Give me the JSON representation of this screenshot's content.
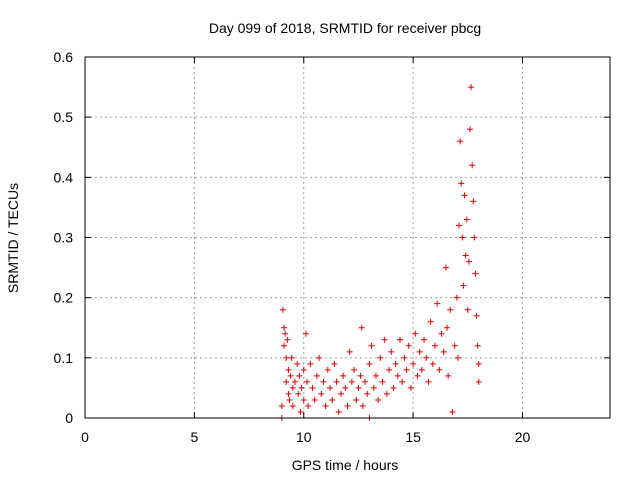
{
  "chart_data": {
    "type": "scatter",
    "title": "Day 099 of 2018, SRMTID for receiver pbcg",
    "xlabel": "GPS time / hours",
    "ylabel": "SRMTID / TECUs",
    "xlim": [
      0,
      24
    ],
    "ylim": [
      0,
      0.6
    ],
    "xticks": [
      0,
      5,
      10,
      15,
      20
    ],
    "yticks": [
      0,
      0.1,
      0.2,
      0.3,
      0.4,
      0.5,
      0.6
    ],
    "grid": true,
    "marker": "+",
    "color": "#e00000",
    "series": [
      {
        "points": [
          [
            9.0,
            0.0
          ],
          [
            9.0,
            0.02
          ],
          [
            9.05,
            0.18
          ],
          [
            9.1,
            0.15
          ],
          [
            9.1,
            0.12
          ],
          [
            9.15,
            0.14
          ],
          [
            9.2,
            0.1
          ],
          [
            9.2,
            0.06
          ],
          [
            9.25,
            0.13
          ],
          [
            9.3,
            0.08
          ],
          [
            9.3,
            0.04
          ],
          [
            9.35,
            0.03
          ],
          [
            9.4,
            0.07
          ],
          [
            9.45,
            0.1
          ],
          [
            9.5,
            0.05
          ],
          [
            9.5,
            0.02
          ],
          [
            9.6,
            0.06
          ],
          [
            9.7,
            0.09
          ],
          [
            9.75,
            0.04
          ],
          [
            9.8,
            0.07
          ],
          [
            9.85,
            0.01
          ],
          [
            9.9,
            0.05
          ],
          [
            10.0,
            0.08
          ],
          [
            10.0,
            0.03
          ],
          [
            10.1,
            0.14
          ],
          [
            10.15,
            0.06
          ],
          [
            10.2,
            0.02
          ],
          [
            10.3,
            0.09
          ],
          [
            10.4,
            0.05
          ],
          [
            10.5,
            0.03
          ],
          [
            10.6,
            0.07
          ],
          [
            10.7,
            0.1
          ],
          [
            10.8,
            0.04
          ],
          [
            10.9,
            0.06
          ],
          [
            11.0,
            0.02
          ],
          [
            11.1,
            0.08
          ],
          [
            11.2,
            0.05
          ],
          [
            11.3,
            0.03
          ],
          [
            11.4,
            0.09
          ],
          [
            11.5,
            0.06
          ],
          [
            11.6,
            0.01
          ],
          [
            11.7,
            0.04
          ],
          [
            11.8,
            0.07
          ],
          [
            11.9,
            0.05
          ],
          [
            12.0,
            0.02
          ],
          [
            12.1,
            0.11
          ],
          [
            12.2,
            0.06
          ],
          [
            12.3,
            0.08
          ],
          [
            12.4,
            0.03
          ],
          [
            12.5,
            0.05
          ],
          [
            12.6,
            0.07
          ],
          [
            12.65,
            0.15
          ],
          [
            12.7,
            0.02
          ],
          [
            12.8,
            0.06
          ],
          [
            12.9,
            0.04
          ],
          [
            13.0,
            0.0
          ],
          [
            13.0,
            0.09
          ],
          [
            13.1,
            0.12
          ],
          [
            13.2,
            0.05
          ],
          [
            13.3,
            0.07
          ],
          [
            13.4,
            0.03
          ],
          [
            13.5,
            0.1
          ],
          [
            13.6,
            0.06
          ],
          [
            13.7,
            0.13
          ],
          [
            13.8,
            0.04
          ],
          [
            13.9,
            0.08
          ],
          [
            14.0,
            0.11
          ],
          [
            14.1,
            0.05
          ],
          [
            14.2,
            0.09
          ],
          [
            14.3,
            0.07
          ],
          [
            14.4,
            0.13
          ],
          [
            14.5,
            0.06
          ],
          [
            14.6,
            0.1
          ],
          [
            14.7,
            0.08
          ],
          [
            14.8,
            0.12
          ],
          [
            14.9,
            0.05
          ],
          [
            15.0,
            0.09
          ],
          [
            15.1,
            0.14
          ],
          [
            15.2,
            0.07
          ],
          [
            15.3,
            0.11
          ],
          [
            15.4,
            0.08
          ],
          [
            15.5,
            0.13
          ],
          [
            15.6,
            0.1
          ],
          [
            15.7,
            0.06
          ],
          [
            15.8,
            0.16
          ],
          [
            15.9,
            0.09
          ],
          [
            16.0,
            0.12
          ],
          [
            16.1,
            0.19
          ],
          [
            16.2,
            0.08
          ],
          [
            16.3,
            0.14
          ],
          [
            16.4,
            0.11
          ],
          [
            16.5,
            0.25
          ],
          [
            16.55,
            0.15
          ],
          [
            16.6,
            0.07
          ],
          [
            16.7,
            0.18
          ],
          [
            16.8,
            0.01
          ],
          [
            16.9,
            0.12
          ],
          [
            17.0,
            0.2
          ],
          [
            17.05,
            0.1
          ],
          [
            17.1,
            0.32
          ],
          [
            17.15,
            0.46
          ],
          [
            17.2,
            0.39
          ],
          [
            17.25,
            0.3
          ],
          [
            17.3,
            0.22
          ],
          [
            17.35,
            0.37
          ],
          [
            17.4,
            0.27
          ],
          [
            17.45,
            0.33
          ],
          [
            17.5,
            0.18
          ],
          [
            17.55,
            0.26
          ],
          [
            17.6,
            0.48
          ],
          [
            17.65,
            0.55
          ],
          [
            17.7,
            0.42
          ],
          [
            17.75,
            0.36
          ],
          [
            17.8,
            0.3
          ],
          [
            17.85,
            0.24
          ],
          [
            17.9,
            0.17
          ],
          [
            17.95,
            0.12
          ],
          [
            18.0,
            0.09
          ],
          [
            18.0,
            0.06
          ]
        ]
      }
    ]
  }
}
